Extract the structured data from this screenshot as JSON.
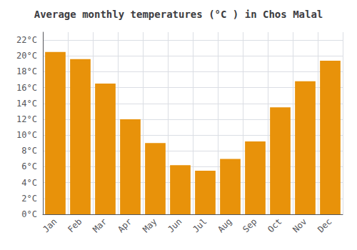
{
  "chart_data": {
    "type": "bar",
    "title": "Average monthly temperatures (°C ) in Chos Malal",
    "categories": [
      "Jan",
      "Feb",
      "Mar",
      "Apr",
      "May",
      "Jun",
      "Jul",
      "Aug",
      "Sep",
      "Oct",
      "Nov",
      "Dec"
    ],
    "values": [
      20.5,
      19.6,
      16.5,
      12.0,
      9.0,
      6.2,
      5.5,
      7.0,
      9.2,
      13.5,
      16.8,
      19.4
    ],
    "color": "#E8920A",
    "ylim": [
      0,
      23
    ],
    "yticks": [
      {
        "value": 0,
        "label": "0°C"
      },
      {
        "value": 2,
        "label": "2°C"
      },
      {
        "value": 4,
        "label": "4°C"
      },
      {
        "value": 6,
        "label": "6°C"
      },
      {
        "value": 8,
        "label": "8°C"
      },
      {
        "value": 10,
        "label": "10°C"
      },
      {
        "value": 12,
        "label": "12°C"
      },
      {
        "value": 14,
        "label": "14°C"
      },
      {
        "value": 16,
        "label": "16°C"
      },
      {
        "value": 18,
        "label": "18°C"
      },
      {
        "value": 20,
        "label": "20°C"
      },
      {
        "value": 22,
        "label": "22°C"
      }
    ],
    "grid": true
  }
}
